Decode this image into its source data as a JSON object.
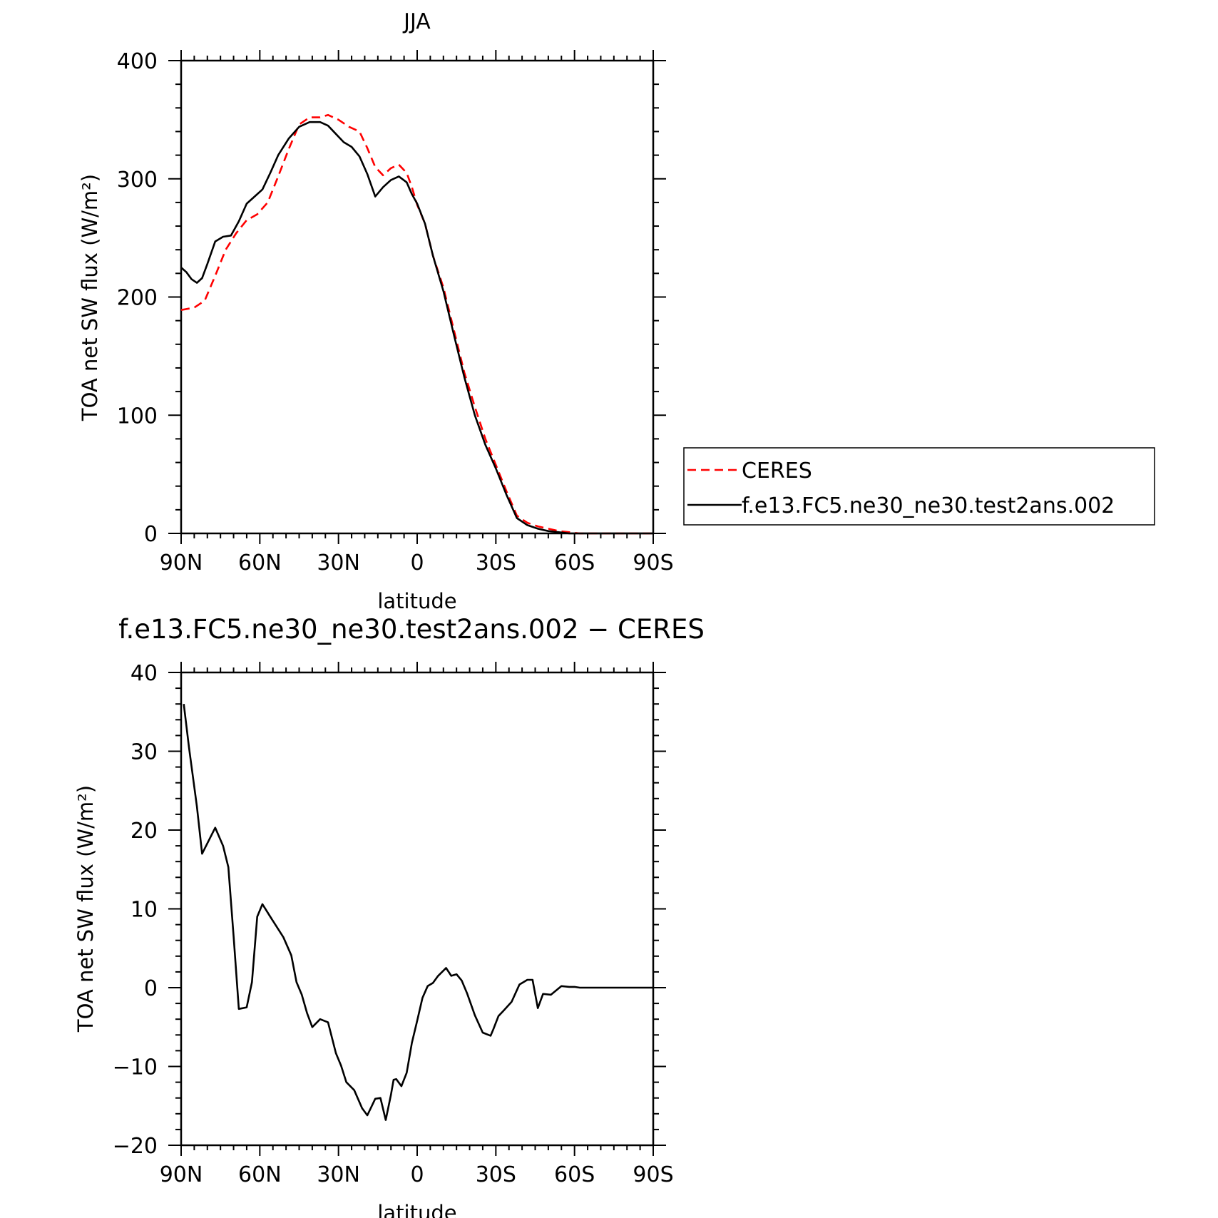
{
  "chart_data": [
    {
      "type": "line",
      "title": "JJA",
      "xlabel": "latitude",
      "ylabel": "TOA net SW flux (W/m²)",
      "xlim": [
        90,
        -90
      ],
      "ylim": [
        0,
        400
      ],
      "xticks": [
        {
          "value": 90,
          "label": "90N"
        },
        {
          "value": 60,
          "label": "60N"
        },
        {
          "value": 30,
          "label": "30N"
        },
        {
          "value": 0,
          "label": "0"
        },
        {
          "value": -30,
          "label": "30S"
        },
        {
          "value": -60,
          "label": "60S"
        },
        {
          "value": -90,
          "label": "90S"
        }
      ],
      "yticks": [
        {
          "value": 0,
          "label": "0"
        },
        {
          "value": 100,
          "label": "100"
        },
        {
          "value": 200,
          "label": "200"
        },
        {
          "value": 300,
          "label": "300"
        },
        {
          "value": 400,
          "label": "400"
        }
      ],
      "legend": {
        "placement": "right",
        "entries": [
          "CERES",
          "f.e13.FC5.ne30_ne30.test2ans.002"
        ]
      },
      "series": [
        {
          "name": "CERES",
          "color": "#ff0000",
          "dash": "dashed",
          "x": [
            90,
            85,
            81,
            77,
            73,
            69,
            65,
            61,
            57,
            53,
            49,
            45,
            41,
            37,
            34,
            30,
            26,
            22,
            19,
            16,
            13,
            10,
            7,
            4,
            2,
            0,
            -3,
            -6,
            -10,
            -14,
            -18,
            -22,
            -26,
            -30,
            -34,
            -38,
            -42,
            -46,
            -50,
            -54,
            -58,
            -62,
            -64,
            -66,
            -68,
            -70,
            -72,
            -74,
            -76,
            -78,
            -80,
            -84,
            -90
          ],
          "y": [
            189,
            191,
            197,
            218,
            240,
            254,
            265,
            270,
            280,
            302,
            325,
            346,
            352,
            352,
            354,
            350,
            344,
            340,
            326,
            310,
            303,
            309,
            312,
            305,
            293,
            278,
            262,
            235,
            208,
            172,
            136,
            107,
            80,
            58,
            36,
            15,
            9,
            6,
            4,
            2,
            1,
            0,
            0,
            0,
            0,
            0,
            0,
            0,
            0,
            0,
            0,
            0,
            0
          ]
        },
        {
          "name": "f.e13.FC5.ne30_ne30.test2ans.002",
          "color": "#000000",
          "dash": "solid",
          "x": [
            90,
            88,
            86,
            84,
            82,
            80,
            77,
            74,
            71,
            68,
            65,
            62,
            59,
            56,
            53,
            49,
            45,
            41,
            37,
            34,
            31,
            28,
            25,
            22,
            19,
            16,
            13,
            10,
            7,
            4,
            2,
            0,
            -3,
            -6,
            -10,
            -14,
            -18,
            -22,
            -26,
            -30,
            -34,
            -38,
            -42,
            -46,
            -50,
            -54,
            -58,
            -62,
            -64,
            -66,
            -68,
            -70,
            -72,
            -74,
            -76,
            -78,
            -80,
            -84,
            -90
          ],
          "y": [
            225,
            221,
            215,
            212,
            216,
            228,
            247,
            251,
            252,
            264,
            279,
            285,
            291,
            305,
            320,
            334,
            344,
            348,
            348,
            345,
            338,
            331,
            327,
            319,
            304,
            285,
            293,
            299,
            302,
            297,
            287,
            279,
            262,
            235,
            205,
            168,
            132,
            100,
            75,
            55,
            33,
            13,
            7,
            4,
            2,
            1,
            0,
            0,
            0,
            0,
            0,
            0,
            0,
            0,
            0,
            0,
            0,
            0,
            0
          ]
        }
      ]
    },
    {
      "type": "line",
      "title": "f.e13.FC5.ne30_ne30.test2ans.002 − CERES",
      "xlabel": "latitude",
      "ylabel": "TOA net SW flux (W/m²)",
      "xlim": [
        90,
        -90
      ],
      "ylim": [
        -20,
        40
      ],
      "xticks": [
        {
          "value": 90,
          "label": "90N"
        },
        {
          "value": 60,
          "label": "60N"
        },
        {
          "value": 30,
          "label": "30N"
        },
        {
          "value": 0,
          "label": "0"
        },
        {
          "value": -30,
          "label": "30S"
        },
        {
          "value": -60,
          "label": "60S"
        },
        {
          "value": -90,
          "label": "90S"
        }
      ],
      "yticks": [
        {
          "value": -20,
          "label": "−20"
        },
        {
          "value": -10,
          "label": "−10"
        },
        {
          "value": 0,
          "label": "0"
        },
        {
          "value": 10,
          "label": "10"
        },
        {
          "value": 20,
          "label": "20"
        },
        {
          "value": 30,
          "label": "30"
        },
        {
          "value": 40,
          "label": "40"
        }
      ],
      "series": [
        {
          "color": "#000000",
          "dash": "solid",
          "x": [
            89,
            87,
            84,
            82,
            77,
            74,
            72,
            70,
            68,
            65,
            63,
            61,
            59,
            56,
            51,
            48,
            46,
            44,
            42,
            40,
            37,
            34,
            31,
            29,
            27,
            24,
            21,
            19,
            16,
            14,
            12,
            10,
            9,
            8,
            6,
            4,
            2,
            0,
            -2,
            -4,
            -6,
            -8,
            -11,
            -13,
            -15,
            -17,
            -19,
            -22,
            -25,
            -28,
            -29,
            -31,
            -33,
            -36,
            -39,
            -42,
            -44,
            -46,
            -48,
            -51,
            -55,
            -58,
            -60,
            -62,
            -64,
            -66,
            -68,
            -70,
            -72,
            -74,
            -78,
            -80,
            -85,
            -90
          ],
          "y": [
            36,
            30.5,
            23,
            17,
            20.3,
            18,
            15.3,
            6.5,
            -2.7,
            -2.5,
            0.7,
            9,
            10.6,
            9,
            6.4,
            4.1,
            0.7,
            -0.9,
            -3.2,
            -5,
            -4,
            -4.4,
            -8.3,
            -9.9,
            -12,
            -13,
            -15.3,
            -16.2,
            -14.1,
            -14,
            -16.8,
            -13.6,
            -11.7,
            -11.6,
            -12.5,
            -10.8,
            -7,
            -4.2,
            -1.3,
            0.2,
            0.6,
            1.5,
            2.5,
            1.5,
            1.7,
            0.9,
            -0.7,
            -3.5,
            -5.7,
            -6.1,
            -5.3,
            -3.6,
            -2.9,
            -1.8,
            0.4,
            1,
            1,
            -2.6,
            -0.8,
            -0.9,
            0.2,
            0.1,
            0.1,
            0,
            0,
            0,
            0,
            0,
            0,
            0,
            0,
            0,
            0,
            0
          ]
        }
      ]
    }
  ]
}
